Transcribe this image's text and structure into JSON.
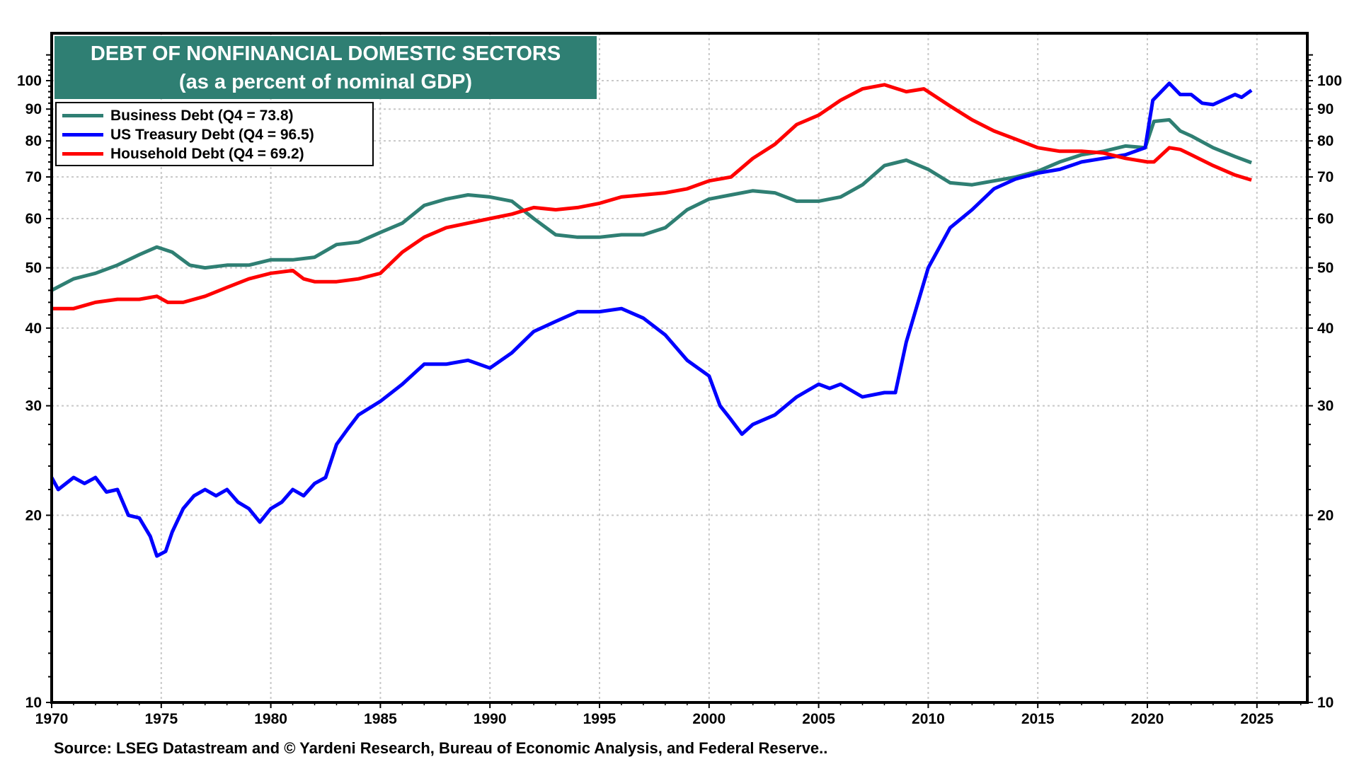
{
  "chart_data": {
    "type": "line",
    "title": "DEBT OF NONFINANCIAL DOMESTIC SECTORS",
    "subtitle": "(as a percent of nominal GDP)",
    "xlabel": "",
    "ylabel": "",
    "y_scale": "log",
    "ylim": [
      10,
      119
    ],
    "xlim": [
      1970,
      2027.3
    ],
    "x_ticks": [
      "1970",
      "1975",
      "1980",
      "1985",
      "1990",
      "1995",
      "2000",
      "2005",
      "2010",
      "2015",
      "2020",
      "2025"
    ],
    "y_ticks": [
      "10",
      "20",
      "30",
      "40",
      "50",
      "60",
      "70",
      "80",
      "90",
      "100"
    ],
    "grid": true,
    "legend_position": "top-left",
    "series": [
      {
        "name": "Business Debt (Q4 = 73.8)",
        "color": "#2f7f73",
        "x": [
          1970,
          1971,
          1972,
          1973,
          1974,
          1974.8,
          1975.5,
          1976.3,
          1977,
          1978,
          1979,
          1980,
          1981,
          1982,
          1983,
          1984,
          1985,
          1986,
          1987,
          1988,
          1989,
          1990,
          1991,
          1992,
          1993,
          1994,
          1995,
          1996,
          1997,
          1998,
          1999,
          2000,
          2001,
          2002,
          2003,
          2004,
          2005,
          2006,
          2007,
          2008,
          2009,
          2010,
          2011,
          2012,
          2013,
          2014,
          2015,
          2016,
          2017,
          2018,
          2019,
          2019.9,
          2020.3,
          2021,
          2021.5,
          2022,
          2023,
          2024,
          2024.75
        ],
        "y": [
          46,
          48,
          49,
          50.5,
          52.5,
          54,
          53,
          50.5,
          50,
          50.5,
          50.5,
          51.5,
          51.5,
          52,
          54.5,
          55,
          57,
          59,
          63,
          64.5,
          65.5,
          65,
          64,
          60,
          56.5,
          56,
          56,
          56.5,
          56.5,
          58,
          62,
          64.5,
          65.5,
          66.5,
          66,
          64,
          64,
          65,
          68,
          73,
          74.5,
          72,
          68.5,
          68,
          69,
          70,
          71.5,
          74,
          76,
          77,
          78.5,
          78,
          86,
          86.5,
          83,
          81.5,
          78,
          75.5,
          73.8
        ]
      },
      {
        "name": "US Treasury  Debt (Q4 = 96.5)",
        "color": "#0000ff",
        "x": [
          1970,
          1970.3,
          1971,
          1971.5,
          1972,
          1972.5,
          1973,
          1973.5,
          1974,
          1974.5,
          1974.8,
          1975.2,
          1975.5,
          1976,
          1976.5,
          1977,
          1977.5,
          1978,
          1978.5,
          1979,
          1979.5,
          1980,
          1980.5,
          1981,
          1981.5,
          1982,
          1982.5,
          1983,
          1983.5,
          1984,
          1985,
          1986,
          1987,
          1988,
          1989,
          1990,
          1991,
          1992,
          1993,
          1994,
          1995,
          1996,
          1997,
          1998,
          1999,
          2000,
          2000.5,
          2001,
          2001.5,
          2002,
          2003,
          2004,
          2005,
          2005.5,
          2006,
          2007,
          2008,
          2008.5,
          2009,
          2010,
          2011,
          2012,
          2013,
          2014,
          2015,
          2016,
          2017,
          2018,
          2019,
          2019.9,
          2020.25,
          2021,
          2021.5,
          2022,
          2022.5,
          2023,
          2024,
          2024.3,
          2024.75
        ],
        "y": [
          23,
          22,
          23,
          22.5,
          23,
          21.8,
          22,
          20,
          19.8,
          18.5,
          17.2,
          17.5,
          18.8,
          20.5,
          21.5,
          22,
          21.5,
          22,
          21,
          20.5,
          19.5,
          20.5,
          21,
          22,
          21.5,
          22.5,
          23,
          26,
          27.5,
          29,
          30.5,
          32.5,
          35,
          35,
          35.5,
          34.5,
          36.5,
          39.5,
          41,
          42.5,
          42.5,
          43,
          41.5,
          39,
          35.5,
          33.5,
          30,
          28.5,
          27,
          28,
          29,
          31,
          32.5,
          32,
          32.5,
          31,
          31.5,
          31.5,
          38,
          50,
          58,
          62,
          67,
          69.5,
          71,
          72,
          74,
          75,
          76,
          78,
          93,
          99,
          95,
          95,
          92,
          91.5,
          95,
          94,
          96.5
        ]
      },
      {
        "name": "Household  Debt (Q4 = 69.2)",
        "color": "#ff0000",
        "x": [
          1970,
          1971,
          1972,
          1973,
          1974,
          1974.8,
          1975.3,
          1976,
          1977,
          1978,
          1979,
          1980,
          1981,
          1981.5,
          1982,
          1983,
          1984,
          1985,
          1986,
          1987,
          1988,
          1989,
          1990,
          1991,
          1992,
          1993,
          1994,
          1995,
          1996,
          1997,
          1998,
          1999,
          2000,
          2001,
          2002,
          2003,
          2004,
          2005,
          2006,
          2007,
          2008,
          2009,
          2009.8,
          2010,
          2011,
          2012,
          2013,
          2014,
          2015,
          2016,
          2017,
          2018,
          2019,
          2020,
          2020.3,
          2021,
          2021.5,
          2022,
          2023,
          2024,
          2024.75
        ],
        "y": [
          43,
          43,
          44,
          44.5,
          44.5,
          45,
          44,
          44,
          45,
          46.5,
          48,
          49,
          49.5,
          48,
          47.5,
          47.5,
          48,
          49,
          53,
          56,
          58,
          59,
          60,
          61,
          62.5,
          62,
          62.5,
          63.5,
          65,
          65.5,
          66,
          67,
          69,
          70,
          75,
          79,
          85,
          88,
          93,
          97,
          98.5,
          96,
          97,
          96,
          91,
          86.5,
          83,
          80.5,
          78,
          77,
          77,
          76.5,
          75,
          74,
          74,
          78,
          77.5,
          76,
          73,
          70.5,
          69.2
        ]
      }
    ]
  },
  "source": "Source: LSEG Datastream and © Yardeni Research, Bureau of Economic Analysis, and Federal Reserve.."
}
